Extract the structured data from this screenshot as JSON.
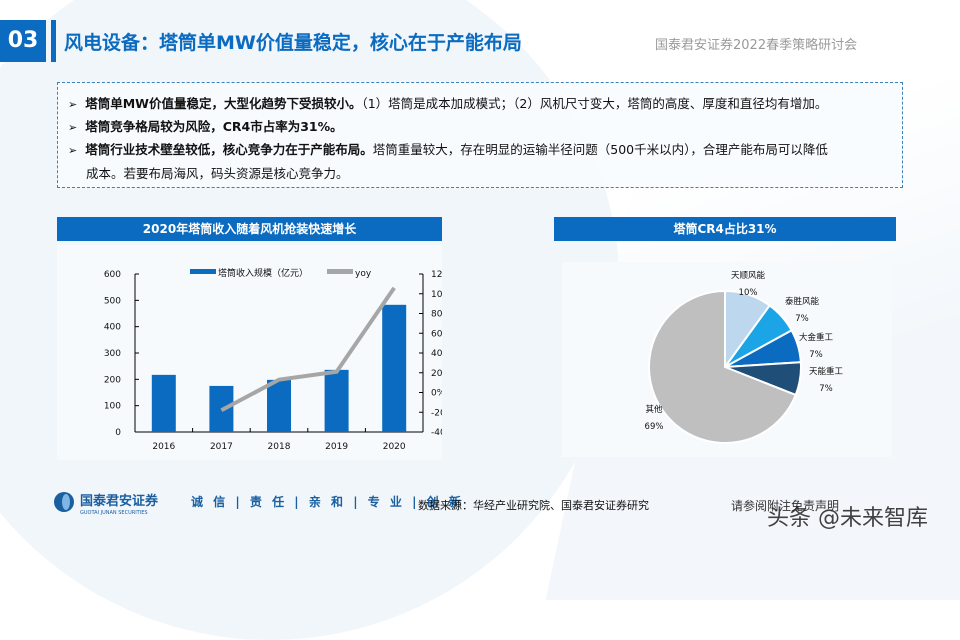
{
  "header": {
    "section_number": "03",
    "title": "风电设备：塔筒单MW价值量稳定，核心在于产能布局",
    "conference": "国泰君安证券2022春季策略研讨会"
  },
  "summary": {
    "bullets": [
      {
        "bold": "塔筒单MW价值量稳定，大型化趋势下受损较小。",
        "normal": "（1）塔筒是成本加成模式；（2）风机尺寸变大，塔筒的高度、厚度和直径均有增加。"
      },
      {
        "bold": "塔筒竞争格局较为风险，CR4市占率为31%。",
        "normal": ""
      },
      {
        "bold": "塔筒行业技术壁垒较低，核心竞争力在于产能布局。",
        "normal": "塔筒重量较大，存在明显的运输半径问题（500千米以内），合理产能布局可以降低",
        "continuation": "成本。若要布局海风，码头资源是核心竞争力。"
      }
    ]
  },
  "chart_data": [
    {
      "type": "bar",
      "title": "2020年塔筒收入随着风机抢装快速增长",
      "categories": [
        "2016",
        "2017",
        "2018",
        "2019",
        "2020"
      ],
      "series": [
        {
          "name": "塔筒收入规模（亿元）",
          "type": "bar",
          "axis": "left",
          "color": "#0b6bc0",
          "values": [
            217,
            175,
            198,
            236,
            483
          ]
        },
        {
          "name": "yoy",
          "type": "line",
          "axis": "right",
          "color": "#a6a6a6",
          "values": [
            null,
            -18,
            13,
            21,
            106
          ]
        }
      ],
      "left_axis": {
        "ticks": [
          "0",
          "100",
          "200",
          "300",
          "400",
          "500",
          "600"
        ],
        "ylim": [
          0,
          600
        ]
      },
      "right_axis": {
        "ticks": [
          "-40%",
          "-20%",
          "0%",
          "20%",
          "40%",
          "60%",
          "80%",
          "100%",
          "120%"
        ],
        "ylim": [
          -40,
          120
        ]
      },
      "legend_position": "top",
      "grid": false
    },
    {
      "type": "pie",
      "title": "塔筒CR4占比31%",
      "slices": [
        {
          "label": "天顺风能",
          "value": 10,
          "display": "10%",
          "color": "#bdd7ee"
        },
        {
          "label": "泰胜风能",
          "value": 7,
          "display": "7%",
          "color": "#1ba4e6"
        },
        {
          "label": "大金重工",
          "value": 7,
          "display": "7%",
          "color": "#0b6bc0"
        },
        {
          "label": "天能重工",
          "value": 7,
          "display": "7%",
          "color": "#1f4e79"
        },
        {
          "label": "其他",
          "value": 69,
          "display": "69%",
          "color": "#bfbfbf"
        }
      ]
    }
  ],
  "footer": {
    "logo_cn": "国泰君安证券",
    "logo_en": "GUOTAI JUNAN SECURITIES",
    "motto": "诚 信 | 责 任 | 亲 和 | 专 业 | 创 新",
    "source": "数据来源：华经产业研究院、国泰君安证券研究",
    "disclaimer": "请参阅附注免责声明",
    "watermark": "头条 @未来智库"
  }
}
